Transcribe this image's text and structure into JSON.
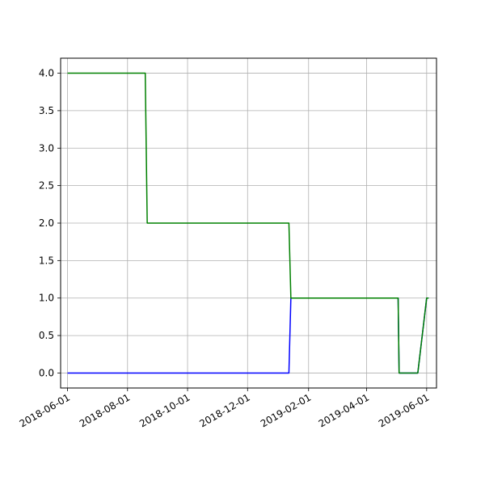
{
  "chart_data": {
    "type": "line",
    "title": "",
    "xlabel": "",
    "ylabel": "",
    "x_ticks": [
      "2018-06-01",
      "2018-08-01",
      "2018-10-01",
      "2018-12-01",
      "2019-02-01",
      "2019-04-01",
      "2019-06-01"
    ],
    "y_ticks": [
      "0.0",
      "0.5",
      "1.0",
      "1.5",
      "2.0",
      "2.5",
      "3.0",
      "3.5",
      "4.0"
    ],
    "xlim": [
      "2018-05-25",
      "2019-06-11"
    ],
    "ylim": [
      -0.2,
      4.2
    ],
    "grid": true,
    "series": [
      {
        "color": "#0000ff",
        "x": [
          "2018-06-01",
          "2019-01-12",
          "2019-01-14",
          "2019-05-03",
          "2019-05-04",
          "2019-05-23",
          "2019-06-01",
          "2019-06-03"
        ],
        "y": [
          0,
          0,
          1,
          1,
          0,
          0,
          1,
          1
        ]
      },
      {
        "color": "#008000",
        "x": [
          "2018-06-01",
          "2018-08-19",
          "2018-08-21",
          "2019-01-12",
          "2019-01-14",
          "2019-05-03",
          "2019-05-04",
          "2019-05-23",
          "2019-06-01",
          "2019-06-03"
        ],
        "y": [
          4,
          4,
          2,
          2,
          1,
          1,
          0,
          0,
          1,
          1
        ]
      }
    ]
  }
}
